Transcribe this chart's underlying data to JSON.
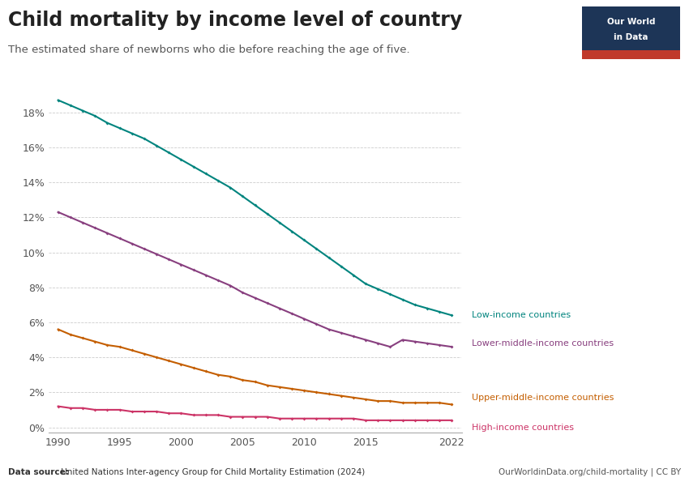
{
  "title": "Child mortality by income level of country",
  "subtitle": "The estimated share of newborns who die before reaching the age of five.",
  "datasource_bold": "Data source:",
  "datasource_rest": " United Nations Inter-agency Group for Child Mortality Estimation (2024)",
  "website": "OurWorldinData.org/child-mortality | CC BY",
  "years": [
    1990,
    1991,
    1992,
    1993,
    1994,
    1995,
    1996,
    1997,
    1998,
    1999,
    2000,
    2001,
    2002,
    2003,
    2004,
    2005,
    2006,
    2007,
    2008,
    2009,
    2010,
    2011,
    2012,
    2013,
    2014,
    2015,
    2016,
    2017,
    2018,
    2019,
    2020,
    2021,
    2022
  ],
  "low_income": [
    0.187,
    0.184,
    0.181,
    0.178,
    0.174,
    0.171,
    0.168,
    0.165,
    0.161,
    0.157,
    0.153,
    0.149,
    0.145,
    0.141,
    0.137,
    0.132,
    0.127,
    0.122,
    0.117,
    0.112,
    0.107,
    0.102,
    0.097,
    0.092,
    0.087,
    0.082,
    0.079,
    0.076,
    0.073,
    0.07,
    0.068,
    0.066,
    0.064
  ],
  "lower_middle_income": [
    0.123,
    0.12,
    0.117,
    0.114,
    0.111,
    0.108,
    0.105,
    0.102,
    0.099,
    0.096,
    0.093,
    0.09,
    0.087,
    0.084,
    0.081,
    0.077,
    0.074,
    0.071,
    0.068,
    0.065,
    0.062,
    0.059,
    0.056,
    0.054,
    0.052,
    0.05,
    0.048,
    0.046,
    0.05,
    0.049,
    0.048,
    0.047,
    0.046
  ],
  "upper_middle_income": [
    0.056,
    0.053,
    0.051,
    0.049,
    0.047,
    0.046,
    0.044,
    0.042,
    0.04,
    0.038,
    0.036,
    0.034,
    0.032,
    0.03,
    0.029,
    0.027,
    0.026,
    0.024,
    0.023,
    0.022,
    0.021,
    0.02,
    0.019,
    0.018,
    0.017,
    0.016,
    0.015,
    0.015,
    0.014,
    0.014,
    0.014,
    0.014,
    0.013
  ],
  "high_income": [
    0.012,
    0.011,
    0.011,
    0.01,
    0.01,
    0.01,
    0.009,
    0.009,
    0.009,
    0.008,
    0.008,
    0.007,
    0.007,
    0.007,
    0.006,
    0.006,
    0.006,
    0.006,
    0.005,
    0.005,
    0.005,
    0.005,
    0.005,
    0.005,
    0.005,
    0.004,
    0.004,
    0.004,
    0.004,
    0.004,
    0.004,
    0.004,
    0.004
  ],
  "low_income_color": "#00847e",
  "lower_middle_income_color": "#883f7f",
  "upper_middle_income_color": "#c45e00",
  "high_income_color": "#cc3366",
  "background_color": "#ffffff",
  "grid_color": "#cccccc",
  "xlim": [
    1989.2,
    2022.8
  ],
  "ylim": [
    -0.003,
    0.197
  ],
  "yticks": [
    0.0,
    0.02,
    0.04,
    0.06,
    0.08,
    0.1,
    0.12,
    0.14,
    0.16,
    0.18
  ],
  "xticks": [
    1990,
    1995,
    2000,
    2005,
    2010,
    2015,
    2022
  ],
  "low_income_label": "Low-income countries",
  "lower_middle_income_label": "Lower-middle-income countries",
  "upper_middle_income_label": "Upper-middle-income countries",
  "high_income_label": "High-income countries",
  "logo_bg_color": "#1d3557",
  "logo_red_color": "#c0392b",
  "logo_line1": "Our World",
  "logo_line2": "in Data"
}
